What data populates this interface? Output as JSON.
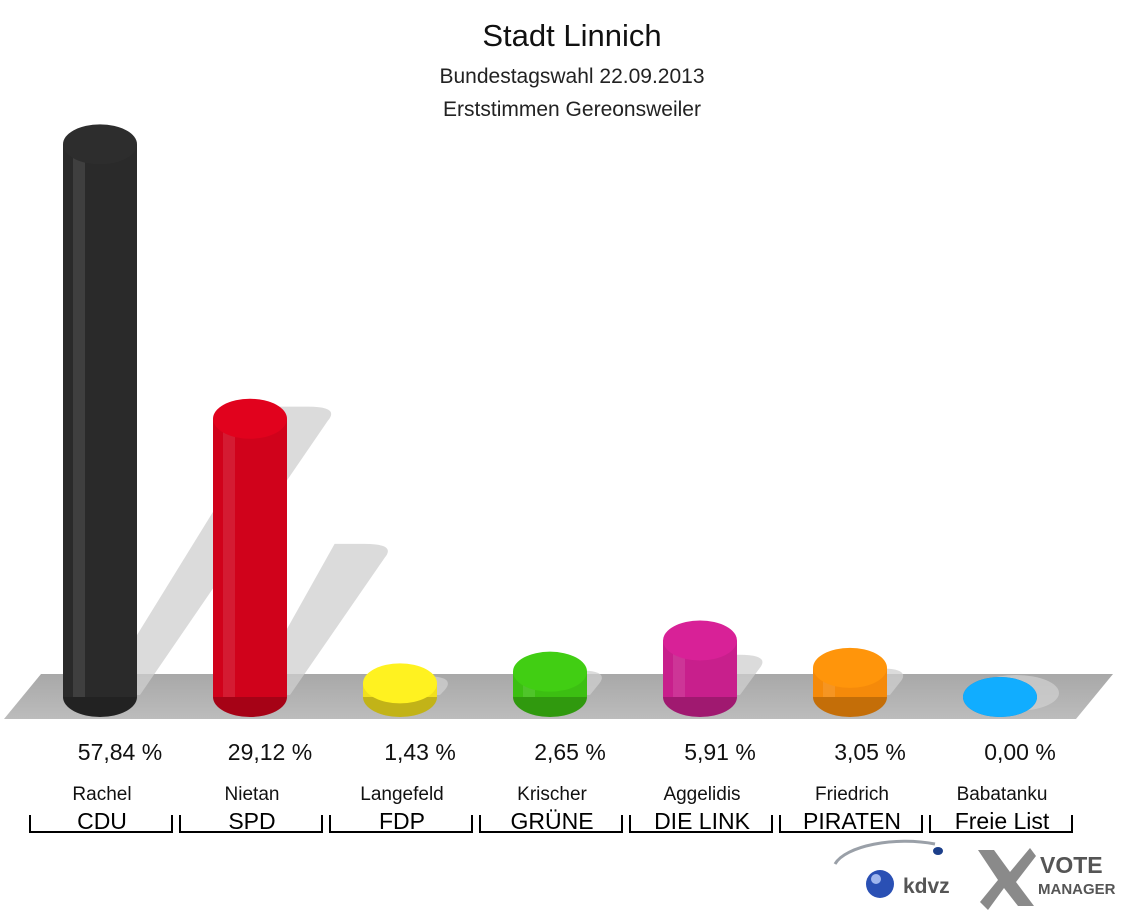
{
  "chart_data": {
    "type": "bar",
    "title": "Stadt Linnich",
    "subtitle_1": "Bundestagswahl 22.09.2013",
    "subtitle_2": "Erststimmen Gereonsweiler",
    "ylim": [
      0,
      60
    ],
    "categories": [
      "CDU",
      "SPD",
      "FDP",
      "GRÜNE",
      "DIE LINK",
      "PIRATEN",
      "Freie List"
    ],
    "candidates": [
      "Rachel",
      "Nietan",
      "Langefeld",
      "Krischer",
      "Aggelidis",
      "Friedrich",
      "Babatanku"
    ],
    "values": [
      57.84,
      29.12,
      1.43,
      2.65,
      5.91,
      3.05,
      0.0
    ],
    "labels": [
      "57,84 %",
      "29,12 %",
      "1,43 %",
      "2,65 %",
      "5,91 %",
      "3,05 %",
      "0,00 %"
    ],
    "colors": [
      "#2a2a2a",
      "#d0021b",
      "#f2e01e",
      "#3cbf12",
      "#c81f8c",
      "#f58a0a",
      "#10a0f5"
    ]
  },
  "logos": {
    "kdvz": "kdvz",
    "vote_1": "VOTE",
    "vote_2": "MANAGER"
  }
}
